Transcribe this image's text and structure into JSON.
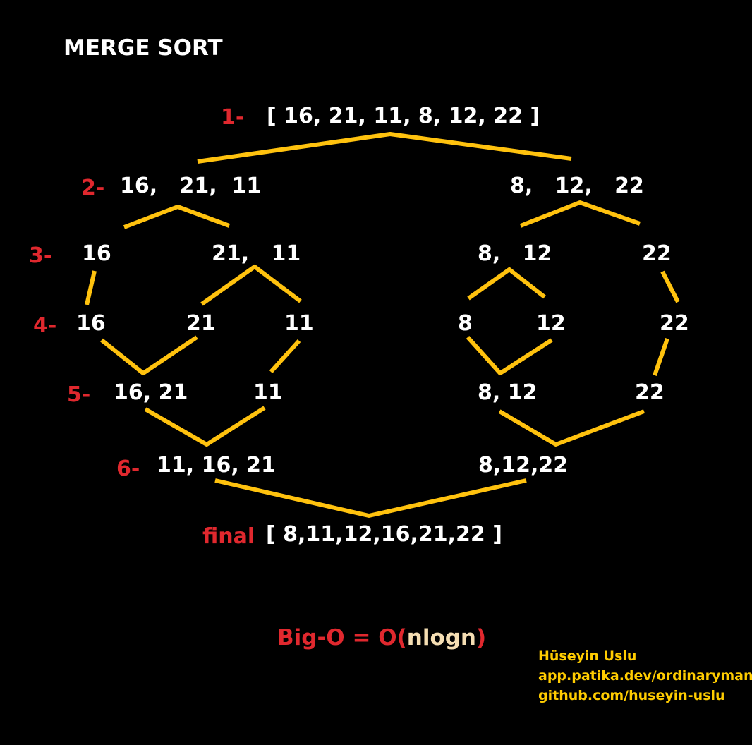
{
  "title": "MERGE SORT",
  "steps": {
    "s1": "1-",
    "s2": "2-",
    "s3": "3-",
    "s4": "4-",
    "s5": "5-",
    "s6": "6-",
    "final": "final"
  },
  "nodes": {
    "s1": "[ 16, 21, 11, 8, 12, 22 ]",
    "s2_left": "16,   21,  11",
    "s2_right": "8,   12,   22",
    "s3_a": "16",
    "s3_b": "21,   11",
    "s3_c": "8,   12",
    "s3_d": "22",
    "s4_a": "16",
    "s4_b": "21",
    "s4_c": "11",
    "s4_d": "8",
    "s4_e": "12",
    "s4_f": "22",
    "s5_a": "16, 21",
    "s5_b": "11",
    "s5_c": "8, 12",
    "s5_d": "22",
    "s6_left": "11, 16, 21",
    "s6_right": "8,12,22",
    "final": "[ 8,11,12,16,21,22 ]"
  },
  "complexity": {
    "prefix": "Big-O = O(",
    "term": "nlogn",
    "suffix": ")"
  },
  "credits": {
    "name": "Hüseyin Uslu",
    "patika": "app.patika.dev/ordinaryman",
    "github": "github.com/huseyin-uslu"
  },
  "colors": {
    "background": "#000000",
    "text": "#ffffff",
    "step_label": "#e0282e",
    "connector": "#ffc20e",
    "credits": "#ffcc00",
    "complexity_term": "#f5deb3"
  }
}
